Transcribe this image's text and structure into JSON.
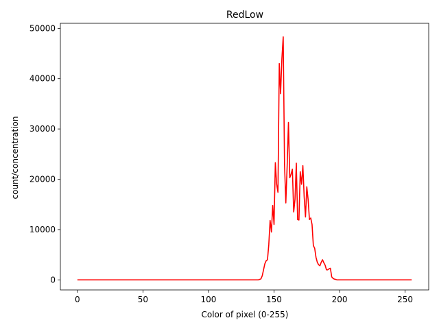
{
  "chart_data": {
    "type": "line",
    "title": "RedLow",
    "xlabel": "Color of pixel (0-255)",
    "ylabel": "count/concentration",
    "xlim": [
      -13,
      268
    ],
    "ylim": [
      -2000,
      51000
    ],
    "xticks": [
      0,
      50,
      100,
      150,
      200,
      250
    ],
    "yticks": [
      0,
      10000,
      20000,
      30000,
      40000,
      50000
    ],
    "grid": false,
    "legend": "none",
    "series": [
      {
        "color": "#ff0000",
        "points": [
          [
            0,
            0
          ],
          [
            20,
            0
          ],
          [
            40,
            0
          ],
          [
            60,
            0
          ],
          [
            80,
            0
          ],
          [
            100,
            0
          ],
          [
            120,
            0
          ],
          [
            138,
            0
          ],
          [
            140,
            200
          ],
          [
            141,
            800
          ],
          [
            142,
            2000
          ],
          [
            143,
            3200
          ],
          [
            144,
            3800
          ],
          [
            145,
            4000
          ],
          [
            146,
            7000
          ],
          [
            147,
            11800
          ],
          [
            148,
            9500
          ],
          [
            149,
            14800
          ],
          [
            150,
            11000
          ],
          [
            151,
            23300
          ],
          [
            152,
            19000
          ],
          [
            153,
            17400
          ],
          [
            154,
            43000
          ],
          [
            155,
            37000
          ],
          [
            156,
            44000
          ],
          [
            157,
            48300
          ],
          [
            158,
            23000
          ],
          [
            159,
            15300
          ],
          [
            160,
            22500
          ],
          [
            161,
            31300
          ],
          [
            162,
            20300
          ],
          [
            163,
            21000
          ],
          [
            164,
            22000
          ],
          [
            165,
            13500
          ],
          [
            166,
            16000
          ],
          [
            167,
            23200
          ],
          [
            168,
            12000
          ],
          [
            169,
            11900
          ],
          [
            170,
            21500
          ],
          [
            171,
            19000
          ],
          [
            172,
            22700
          ],
          [
            173,
            16500
          ],
          [
            174,
            12500
          ],
          [
            175,
            18500
          ],
          [
            176,
            16000
          ],
          [
            177,
            12000
          ],
          [
            178,
            12300
          ],
          [
            179,
            11000
          ],
          [
            180,
            6800
          ],
          [
            181,
            6300
          ],
          [
            182,
            4500
          ],
          [
            183,
            3500
          ],
          [
            184,
            3000
          ],
          [
            185,
            2800
          ],
          [
            186,
            3500
          ],
          [
            187,
            4000
          ],
          [
            188,
            3400
          ],
          [
            189,
            2900
          ],
          [
            190,
            2000
          ],
          [
            191,
            2000
          ],
          [
            192,
            2200
          ],
          [
            193,
            2300
          ],
          [
            194,
            600
          ],
          [
            195,
            300
          ],
          [
            196,
            150
          ],
          [
            197,
            100
          ],
          [
            198,
            0
          ],
          [
            200,
            0
          ],
          [
            220,
            0
          ],
          [
            240,
            0
          ],
          [
            255,
            0
          ]
        ]
      }
    ]
  }
}
